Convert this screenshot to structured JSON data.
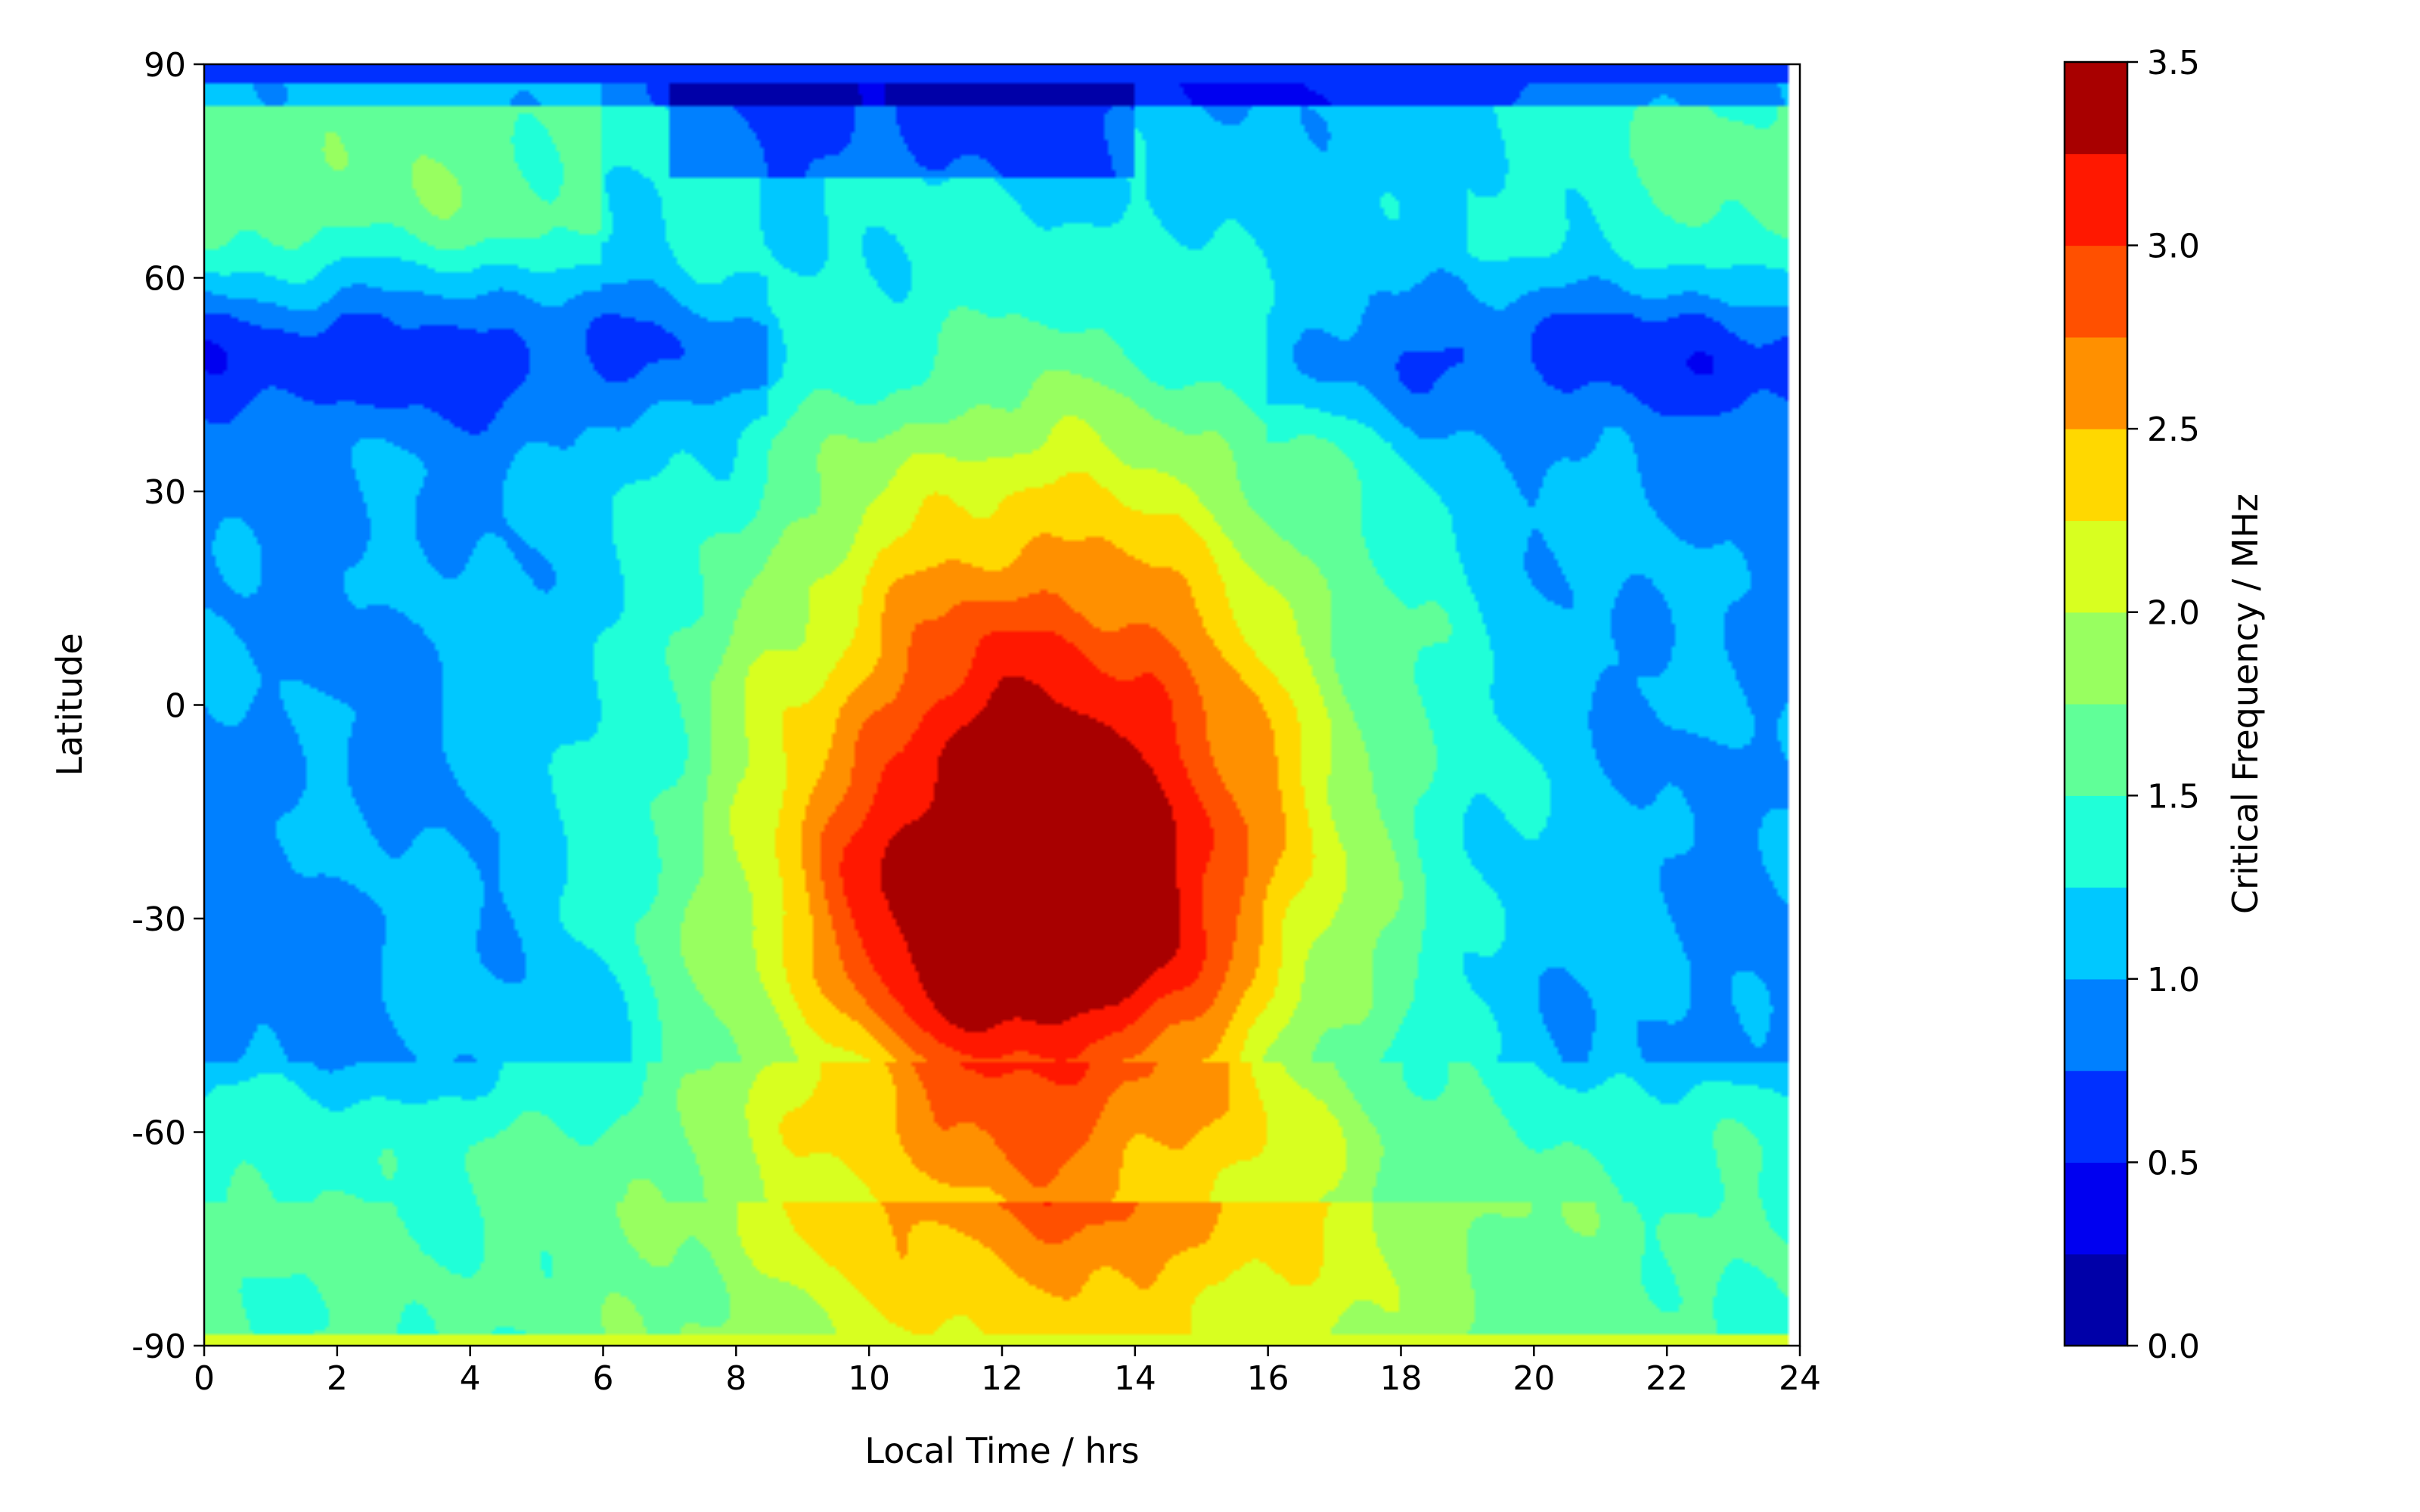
{
  "chart_data": {
    "type": "contourf",
    "xlabel": "Local Time / hrs",
    "ylabel": "Latitude",
    "colorbar_label": "Critical Frequency / MHz",
    "xlim": [
      0,
      24
    ],
    "ylim": [
      -90,
      90
    ],
    "xticks": [
      0,
      2,
      4,
      6,
      8,
      10,
      12,
      14,
      16,
      18,
      20,
      22,
      24
    ],
    "yticks": [
      -90,
      -60,
      -30,
      0,
      30,
      60,
      90
    ],
    "xtick_labels": [
      "0",
      "2",
      "4",
      "6",
      "8",
      "10",
      "12",
      "14",
      "16",
      "18",
      "20",
      "22",
      "24"
    ],
    "ytick_labels": [
      "-90",
      "-60",
      "-30",
      "0",
      "30",
      "60",
      "90"
    ],
    "colorbar_ticks": [
      0.0,
      0.5,
      1.0,
      1.5,
      2.0,
      2.5,
      3.0,
      3.5
    ],
    "colorbar_tick_labels": [
      "0.0",
      "0.5",
      "1.0",
      "1.5",
      "2.0",
      "2.5",
      "3.0",
      "3.5"
    ],
    "levels": [
      0.0,
      0.25,
      0.5,
      0.75,
      1.0,
      1.25,
      1.5,
      1.75,
      2.0,
      2.25,
      2.5,
      2.75,
      3.0,
      3.25,
      3.5
    ],
    "level_colors": [
      "#0000a8",
      "#0000f0",
      "#0030ff",
      "#0080ff",
      "#00c8ff",
      "#20ffd8",
      "#60ff98",
      "#98ff60",
      "#d8ff20",
      "#ffd800",
      "#ff9000",
      "#ff5000",
      "#ff1800",
      "#a80000"
    ],
    "colormap": "jet",
    "grid": false,
    "peak": {
      "local_time": 13,
      "latitude": -20,
      "value": 3.3
    }
  }
}
